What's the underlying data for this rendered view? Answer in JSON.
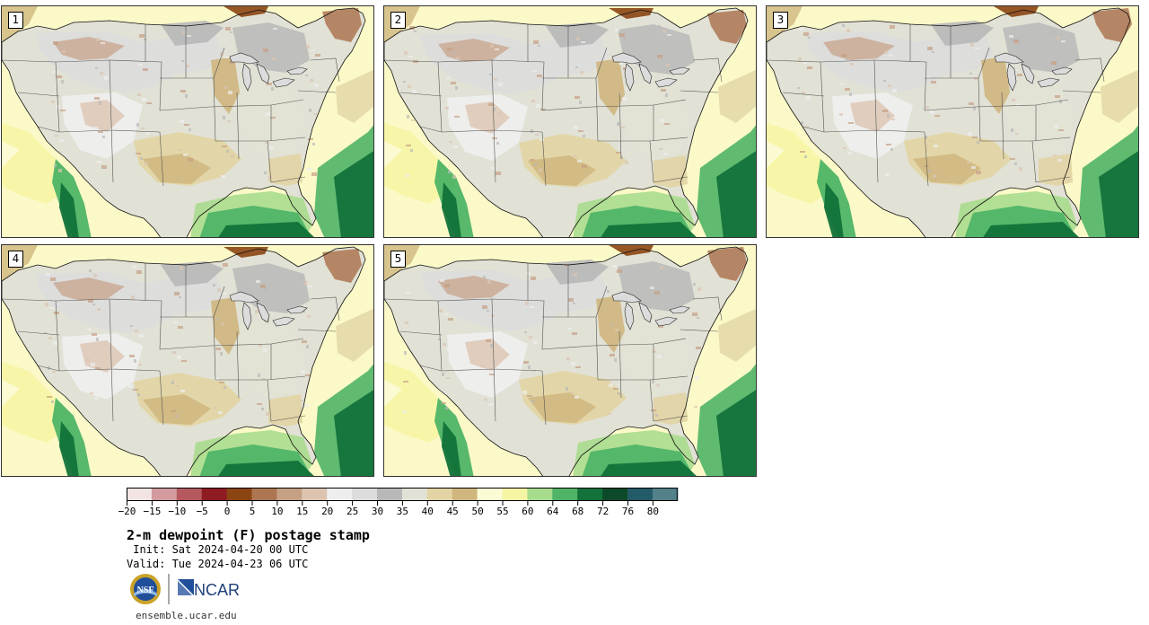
{
  "panels": [
    {
      "number": "1"
    },
    {
      "number": "2"
    },
    {
      "number": "3"
    },
    {
      "number": "4"
    },
    {
      "number": "5"
    }
  ],
  "colorbar": {
    "bins": [
      {
        "color": "#f3e4e4"
      },
      {
        "color": "#d39b9e"
      },
      {
        "color": "#b5595f"
      },
      {
        "color": "#8e1a22"
      },
      {
        "color": "#8b4513"
      },
      {
        "color": "#ad7652"
      },
      {
        "color": "#c6a085"
      },
      {
        "color": "#dcc4b0"
      },
      {
        "color": "#eeeeee"
      },
      {
        "color": "#dcdcdc"
      },
      {
        "color": "#b8b8b8"
      },
      {
        "color": "#e1e1d5"
      },
      {
        "color": "#e2d4a4"
      },
      {
        "color": "#cfb67e"
      },
      {
        "color": "#fbfbd6"
      },
      {
        "color": "#f6f5a4"
      },
      {
        "color": "#a8dc8d"
      },
      {
        "color": "#4fb466"
      },
      {
        "color": "#12723a"
      },
      {
        "color": "#0d4a2a"
      },
      {
        "color": "#235b68"
      },
      {
        "color": "#52818a"
      }
    ],
    "labels": [
      "−20",
      "−15",
      "−10",
      "−5",
      "0",
      "5",
      "10",
      "15",
      "20",
      "25",
      "30",
      "35",
      "40",
      "45",
      "50",
      "55",
      "60",
      "64",
      "68",
      "72",
      "76",
      "80"
    ]
  },
  "title": "2-m dewpoint (F) postage stamp",
  "init": " Init: Sat 2024-04-20 00 UTC",
  "valid": "Valid: Tue 2024-04-23 06 UTC",
  "logos": {
    "nsf": "NSF",
    "ncar": "NCAR"
  },
  "url": "ensemble.ucar.edu"
}
